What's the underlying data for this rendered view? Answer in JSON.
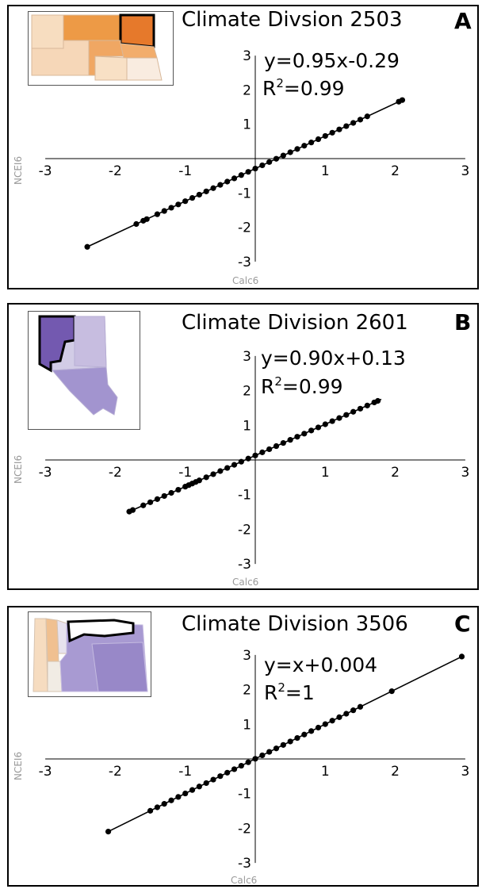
{
  "chart_data": [
    {
      "type": "scatter",
      "panel_label": "A",
      "title": "Climate Divsion 2503",
      "xlabel": "Calc6",
      "ylabel": "NCEI6",
      "xlim": [
        -3,
        3
      ],
      "ylim": [
        -3,
        3
      ],
      "xticks": [
        -3,
        -2,
        -1,
        1,
        2,
        3
      ],
      "yticks": [
        3,
        2,
        1,
        -1,
        -2,
        -3
      ],
      "equation_text": "y=0.95x-0.29",
      "r2_prefix": "R",
      "r2_sup": "2",
      "r2_value": "=0.99",
      "fit": {
        "slope": 0.95,
        "intercept": -0.29,
        "x_range": [
          -2.4,
          2.1
        ]
      },
      "x": [
        -2.4,
        -1.7,
        -1.6,
        -1.55,
        -1.4,
        -1.3,
        -1.2,
        -1.1,
        -1.0,
        -0.9,
        -0.8,
        -0.7,
        -0.6,
        -0.5,
        -0.4,
        -0.3,
        -0.2,
        -0.1,
        0.0,
        0.1,
        0.2,
        0.3,
        0.4,
        0.5,
        0.6,
        0.7,
        0.8,
        0.9,
        1.0,
        1.1,
        1.2,
        1.3,
        1.4,
        1.5,
        1.6,
        2.05,
        2.1
      ],
      "inset_color": "#e8913f",
      "grid": false
    },
    {
      "type": "scatter",
      "panel_label": "B",
      "title": "Climate Division 2601",
      "xlabel": "Calc6",
      "ylabel": "NCEI6",
      "xlim": [
        -3,
        3
      ],
      "ylim": [
        -3,
        3
      ],
      "xticks": [
        -3,
        -2,
        -1,
        1,
        2,
        3
      ],
      "yticks": [
        3,
        2,
        1,
        -1,
        -2,
        -3
      ],
      "equation_text": "y=0.90x+0.13",
      "r2_prefix": "R",
      "r2_sup": "2",
      "r2_value": "=0.99",
      "fit": {
        "slope": 0.9,
        "intercept": 0.13,
        "x_range": [
          -1.8,
          1.8
        ]
      },
      "x": [
        -1.8,
        -1.75,
        -1.6,
        -1.5,
        -1.4,
        -1.3,
        -1.2,
        -1.1,
        -1.0,
        -0.95,
        -0.9,
        -0.85,
        -0.8,
        -0.7,
        -0.6,
        -0.5,
        -0.4,
        -0.3,
        -0.2,
        -0.1,
        0.0,
        0.1,
        0.2,
        0.3,
        0.4,
        0.5,
        0.6,
        0.7,
        0.8,
        0.9,
        1.0,
        1.1,
        1.2,
        1.3,
        1.4,
        1.5,
        1.6,
        1.7,
        1.75
      ],
      "inset_color": "#8a75c0",
      "grid": false
    },
    {
      "type": "scatter",
      "panel_label": "C",
      "title": "Climate Division 3506",
      "xlabel": "Calc6",
      "ylabel": "NCEI6",
      "xlim": [
        -3,
        3
      ],
      "ylim": [
        -3,
        3
      ],
      "xticks": [
        -3,
        -2,
        -1,
        1,
        2,
        3
      ],
      "yticks": [
        3,
        2,
        1,
        -1,
        -2,
        -3
      ],
      "equation_text": "y=x+0.004",
      "r2_prefix": "R",
      "r2_sup": "2",
      "r2_value": "=1",
      "fit": {
        "slope": 1.0,
        "intercept": 0.004,
        "x_range": [
          -2.1,
          2.95
        ]
      },
      "x": [
        -2.1,
        -1.5,
        -1.4,
        -1.3,
        -1.2,
        -1.1,
        -1.0,
        -0.9,
        -0.8,
        -0.7,
        -0.6,
        -0.5,
        -0.4,
        -0.3,
        -0.2,
        -0.1,
        0.0,
        0.1,
        0.2,
        0.3,
        0.4,
        0.5,
        0.6,
        0.7,
        0.8,
        0.9,
        1.0,
        1.1,
        1.2,
        1.3,
        1.4,
        1.5,
        1.95,
        2.95
      ],
      "inset_color": "#9a8ccc",
      "grid": false
    }
  ]
}
